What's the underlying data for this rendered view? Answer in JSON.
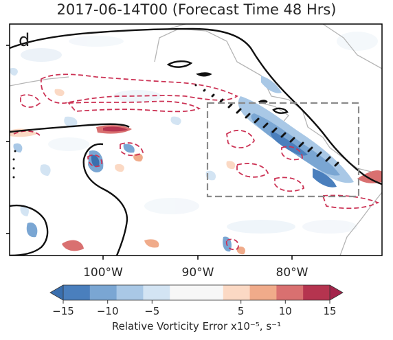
{
  "title": "2017-06-14T00 (Forecast Time 48 Hrs)",
  "panel_label": "d",
  "lon_ticks": [
    "100°W",
    "90°W",
    "80°W"
  ],
  "colorbar": {
    "tick_labels": [
      "−15",
      "−10",
      "−5",
      "5",
      "10",
      "15"
    ],
    "label": "Relative Vorticity Error x10⁻⁵, s⁻¹",
    "colors": [
      "#4a7fbd",
      "#7aa6d3",
      "#a9c8e6",
      "#d3e4f3",
      "#f7f7f7",
      "#f7f7f7",
      "#fbd9c4",
      "#f0ab8a",
      "#d97070",
      "#b5344f"
    ],
    "arrow_low": "#3a6fae",
    "arrow_high": "#a3234a"
  }
}
